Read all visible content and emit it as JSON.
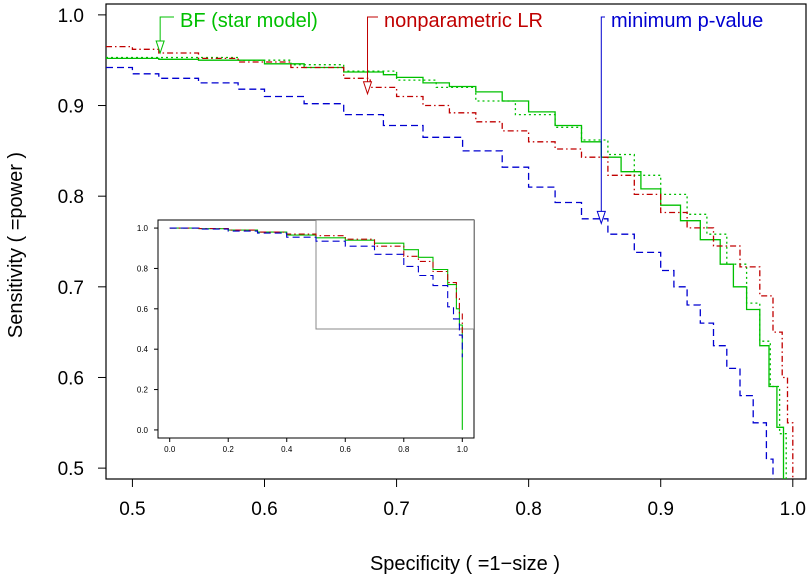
{
  "chart_data": [
    {
      "type": "line",
      "xlabel": "Specificity ( =1−size )",
      "ylabel": "Sensitivity ( =power )",
      "xlim": [
        0.48,
        1.01
      ],
      "ylim": [
        0.488,
        1.012
      ],
      "x_ticks": [
        0.5,
        0.6,
        0.7,
        0.8,
        0.9,
        1.0
      ],
      "x_tick_labels": [
        "0.5",
        "0.6",
        "0.7",
        "0.8",
        "0.9",
        "1.0"
      ],
      "y_ticks": [
        0.5,
        0.6,
        0.7,
        0.8,
        0.9,
        1.0
      ],
      "y_tick_labels": [
        "0.5",
        "0.6",
        "0.7",
        "0.8",
        "0.9",
        "1.0"
      ],
      "grid": false,
      "series": [
        {
          "name": "BF (star model)",
          "color": "#00c000",
          "style": "solid",
          "points": [
            [
              0.48,
              0.952
            ],
            [
              0.52,
              0.951
            ],
            [
              0.55,
              0.95
            ],
            [
              0.6,
              0.946
            ],
            [
              0.63,
              0.942
            ],
            [
              0.66,
              0.937
            ],
            [
              0.69,
              0.934
            ],
            [
              0.7,
              0.931
            ],
            [
              0.72,
              0.925
            ],
            [
              0.74,
              0.921
            ],
            [
              0.76,
              0.915
            ],
            [
              0.78,
              0.905
            ],
            [
              0.8,
              0.893
            ],
            [
              0.82,
              0.878
            ],
            [
              0.84,
              0.86
            ],
            [
              0.855,
              0.843
            ],
            [
              0.87,
              0.827
            ],
            [
              0.885,
              0.808
            ],
            [
              0.9,
              0.79
            ],
            [
              0.915,
              0.773
            ],
            [
              0.93,
              0.752
            ],
            [
              0.945,
              0.725
            ],
            [
              0.955,
              0.7
            ],
            [
              0.965,
              0.675
            ],
            [
              0.975,
              0.635
            ],
            [
              0.982,
              0.59
            ],
            [
              0.988,
              0.545
            ],
            [
              0.993,
              0.488
            ]
          ]
        },
        {
          "name": "",
          "color": "#00c000",
          "style": "dotted",
          "points": [
            [
              0.48,
              0.953
            ],
            [
              0.52,
              0.953
            ],
            [
              0.58,
              0.95
            ],
            [
              0.62,
              0.945
            ],
            [
              0.66,
              0.938
            ],
            [
              0.7,
              0.928
            ],
            [
              0.73,
              0.92
            ],
            [
              0.76,
              0.905
            ],
            [
              0.79,
              0.89
            ],
            [
              0.82,
              0.876
            ],
            [
              0.84,
              0.862
            ],
            [
              0.86,
              0.846
            ],
            [
              0.88,
              0.823
            ],
            [
              0.9,
              0.802
            ],
            [
              0.92,
              0.78
            ],
            [
              0.935,
              0.758
            ],
            [
              0.95,
              0.725
            ],
            [
              0.965,
              0.682
            ],
            [
              0.975,
              0.64
            ],
            [
              0.983,
              0.59
            ],
            [
              0.99,
              0.538
            ],
            [
              0.995,
              0.488
            ]
          ]
        },
        {
          "name": "nonparametric LR",
          "color": "#c00000",
          "style": "dashdot",
          "points": [
            [
              0.48,
              0.965
            ],
            [
              0.5,
              0.962
            ],
            [
              0.52,
              0.958
            ],
            [
              0.55,
              0.952
            ],
            [
              0.58,
              0.948
            ],
            [
              0.62,
              0.942
            ],
            [
              0.66,
              0.93
            ],
            [
              0.68,
              0.92
            ],
            [
              0.7,
              0.91
            ],
            [
              0.72,
              0.9
            ],
            [
              0.74,
              0.892
            ],
            [
              0.76,
              0.882
            ],
            [
              0.78,
              0.872
            ],
            [
              0.8,
              0.86
            ],
            [
              0.82,
              0.852
            ],
            [
              0.84,
              0.843
            ],
            [
              0.86,
              0.823
            ],
            [
              0.88,
              0.802
            ],
            [
              0.9,
              0.782
            ],
            [
              0.92,
              0.765
            ],
            [
              0.94,
              0.745
            ],
            [
              0.96,
              0.722
            ],
            [
              0.975,
              0.69
            ],
            [
              0.985,
              0.65
            ],
            [
              0.992,
              0.6
            ],
            [
              0.996,
              0.55
            ],
            [
              1.0,
              0.488
            ]
          ]
        },
        {
          "name": "minimum p-value",
          "color": "#0000d0",
          "style": "dashed",
          "points": [
            [
              0.48,
              0.942
            ],
            [
              0.5,
              0.935
            ],
            [
              0.52,
              0.93
            ],
            [
              0.55,
              0.925
            ],
            [
              0.58,
              0.918
            ],
            [
              0.6,
              0.91
            ],
            [
              0.63,
              0.902
            ],
            [
              0.66,
              0.89
            ],
            [
              0.69,
              0.878
            ],
            [
              0.72,
              0.865
            ],
            [
              0.75,
              0.85
            ],
            [
              0.78,
              0.832
            ],
            [
              0.8,
              0.81
            ],
            [
              0.82,
              0.793
            ],
            [
              0.84,
              0.775
            ],
            [
              0.86,
              0.758
            ],
            [
              0.88,
              0.738
            ],
            [
              0.9,
              0.718
            ],
            [
              0.91,
              0.7
            ],
            [
              0.92,
              0.68
            ],
            [
              0.93,
              0.66
            ],
            [
              0.94,
              0.635
            ],
            [
              0.95,
              0.61
            ],
            [
              0.96,
              0.58
            ],
            [
              0.97,
              0.55
            ],
            [
              0.98,
              0.51
            ],
            [
              0.985,
              0.488
            ]
          ]
        }
      ],
      "annotations": [
        {
          "text": "BF (star model)",
          "color": "#00c000",
          "arrow_to": [
            0.521,
            0.958
          ]
        },
        {
          "text": "nonparametric LR",
          "color": "#c00000",
          "arrow_to": [
            0.678,
            0.913
          ]
        },
        {
          "text": "minimum p-value",
          "color": "#0000d0",
          "arrow_to": [
            0.855,
            0.77
          ]
        }
      ]
    },
    {
      "type": "line",
      "xlabel": "",
      "ylabel": "",
      "xlim": [
        -0.04,
        1.04
      ],
      "ylim": [
        -0.04,
        1.04
      ],
      "x_ticks": [
        0.0,
        0.2,
        0.4,
        0.6,
        0.8,
        1.0
      ],
      "x_tick_labels": [
        "0.0",
        "0.2",
        "0.4",
        "0.6",
        "0.8",
        "1.0"
      ],
      "y_ticks": [
        0.0,
        0.2,
        0.4,
        0.6,
        0.8,
        1.0
      ],
      "y_tick_labels": [
        "0.0",
        "0.2",
        "0.4",
        "0.6",
        "0.8",
        "1.0"
      ],
      "zoom_box": {
        "x": [
          0.5,
          1.04
        ],
        "y": [
          0.5,
          1.04
        ]
      },
      "series": [
        {
          "color": "#00c000",
          "style": "solid",
          "points": [
            [
              0,
              1.0
            ],
            [
              0.1,
              0.997
            ],
            [
              0.2,
              0.99
            ],
            [
              0.3,
              0.98
            ],
            [
              0.4,
              0.965
            ],
            [
              0.5,
              0.952
            ],
            [
              0.6,
              0.94
            ],
            [
              0.7,
              0.925
            ],
            [
              0.8,
              0.893
            ],
            [
              0.85,
              0.855
            ],
            [
              0.9,
              0.795
            ],
            [
              0.95,
              0.72
            ],
            [
              0.98,
              0.6
            ],
            [
              0.99,
              0.52
            ],
            [
              1.0,
              0.4
            ],
            [
              1.0,
              0.0
            ]
          ]
        },
        {
          "color": "#c00000",
          "style": "dashdot",
          "points": [
            [
              0,
              1.0
            ],
            [
              0.1,
              0.998
            ],
            [
              0.2,
              0.99
            ],
            [
              0.3,
              0.98
            ],
            [
              0.4,
              0.97
            ],
            [
              0.5,
              0.962
            ],
            [
              0.6,
              0.945
            ],
            [
              0.7,
              0.91
            ],
            [
              0.8,
              0.86
            ],
            [
              0.85,
              0.835
            ],
            [
              0.9,
              0.785
            ],
            [
              0.95,
              0.73
            ],
            [
              0.98,
              0.65
            ],
            [
              0.99,
              0.58
            ],
            [
              1.0,
              0.45
            ]
          ]
        },
        {
          "color": "#0000d0",
          "style": "dashed",
          "points": [
            [
              0,
              1.0
            ],
            [
              0.1,
              0.995
            ],
            [
              0.2,
              0.985
            ],
            [
              0.3,
              0.975
            ],
            [
              0.4,
              0.955
            ],
            [
              0.5,
              0.935
            ],
            [
              0.6,
              0.91
            ],
            [
              0.7,
              0.87
            ],
            [
              0.8,
              0.81
            ],
            [
              0.85,
              0.765
            ],
            [
              0.9,
              0.715
            ],
            [
              0.95,
              0.61
            ],
            [
              0.97,
              0.55
            ],
            [
              0.99,
              0.47
            ],
            [
              1.0,
              0.36
            ]
          ]
        }
      ]
    }
  ]
}
